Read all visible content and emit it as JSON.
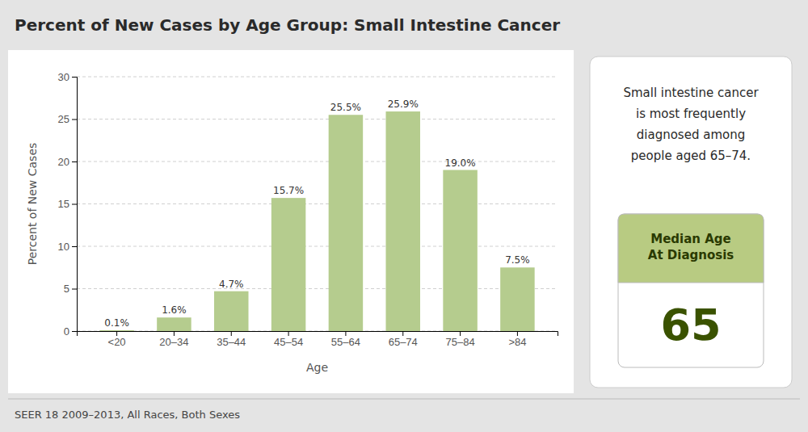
{
  "chart_data": {
    "type": "bar",
    "title": "Percent of New Cases by Age Group: Small Intestine Cancer",
    "x_label": "Age",
    "y_label": "Percent of New Cases",
    "categories": [
      "<20",
      "20–34",
      "35–44",
      "45–54",
      "55–64",
      "65–74",
      "75–84",
      ">84"
    ],
    "values": [
      0.1,
      1.6,
      4.7,
      15.7,
      25.5,
      25.9,
      19.0,
      7.5
    ],
    "value_labels": [
      "0.1%",
      "1.6%",
      "4.7%",
      "15.7%",
      "25.5%",
      "25.9%",
      "19.0%",
      "7.5%"
    ],
    "data_labels": true,
    "color": "#b5cc8e",
    "ylim": [
      0,
      30
    ],
    "yticks": [
      0,
      5,
      10,
      15,
      20,
      25,
      30
    ],
    "grid": true,
    "annotations": [
      "SEER 18 2009–2013, All Races, Both Sexes",
      "Small intestine cancer\nis most frequently\ndiagnosed among\npeople aged 65–74.",
      "Median Age\nAt Diagnosis",
      "65"
    ]
  }
}
